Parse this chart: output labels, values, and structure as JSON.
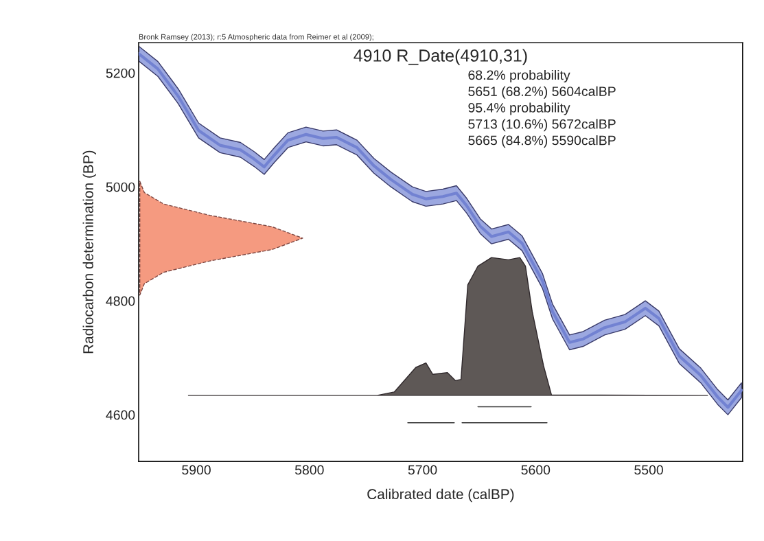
{
  "chart_data": {
    "type": "area",
    "title": "4910 R_Date(4910,31)",
    "subtitle": "Bronk Ramsey (2013); r:5 Atmospheric data from Reimer et al (2009);",
    "xlabel": "Calibrated date (calBP)",
    "ylabel": "Radiocarbon determination (BP)",
    "annotations": [
      "68.2% probability",
      "5651 (68.2%) 5604calBP",
      "95.4% probability",
      "5713 (10.6%) 5672calBP",
      "5665 (84.8%) 5590calBP"
    ],
    "xlim": [
      5951,
      5417
    ],
    "ylim": [
      4518,
      5253
    ],
    "xticks": [
      5900,
      5800,
      5700,
      5600,
      5500
    ],
    "yticks": [
      4600,
      4800,
      5000,
      5200
    ],
    "grid": false,
    "legend": false,
    "series": [
      {
        "type": "line",
        "color": "#7282d2",
        "x": [
          5951,
          5934,
          5916,
          5898,
          5879,
          5861,
          5849,
          5840,
          5831,
          5819,
          5803,
          5788,
          5776,
          5758,
          5743,
          5728,
          5709,
          5697,
          5682,
          5670,
          5661,
          5649,
          5639,
          5624,
          5612,
          5594,
          5585,
          5570,
          5558,
          5539,
          5521,
          5503,
          5491,
          5473,
          5454,
          5439,
          5430,
          5418
        ],
        "values": [
          5234,
          5207,
          5159,
          5099,
          5073,
          5065,
          5049,
          5035,
          5056,
          5082,
          5092,
          5085,
          5087,
          5069,
          5037,
          5013,
          4987,
          4979,
          4983,
          4989,
          4967,
          4931,
          4913,
          4921,
          4901,
          4835,
          4781,
          4727,
          4733,
          4753,
          4763,
          4787,
          4769,
          4703,
          4669,
          4631,
          4613,
          4643
        ],
        "upper": [
          5247,
          5220,
          5172,
          5112,
          5086,
          5078,
          5062,
          5048,
          5069,
          5095,
          5105,
          5098,
          5100,
          5082,
          5050,
          5026,
          5000,
          4992,
          4996,
          5002,
          4980,
          4944,
          4926,
          4934,
          4914,
          4848,
          4794,
          4740,
          4746,
          4766,
          4776,
          4800,
          4782,
          4716,
          4682,
          4644,
          4626,
          4656
        ],
        "lower": [
          5221,
          5194,
          5146,
          5086,
          5060,
          5052,
          5036,
          5022,
          5043,
          5069,
          5079,
          5072,
          5074,
          5056,
          5024,
          5000,
          4974,
          4966,
          4970,
          4976,
          4954,
          4918,
          4900,
          4908,
          4888,
          4822,
          4768,
          4714,
          4720,
          4740,
          4750,
          4774,
          4756,
          4690,
          4656,
          4618,
          4600,
          4630
        ]
      },
      {
        "color": "#f59a80",
        "line_style": "dashed",
        "x": [
          5950,
          5946,
          5929,
          5888,
          5833,
          5806,
          5833,
          5888,
          5929,
          5946,
          5950
        ],
        "values": [
          5010,
          4990,
          4970,
          4950,
          4930,
          4910,
          4890,
          4870,
          4850,
          4830,
          4810
        ]
      },
      {
        "color": "#5e5856",
        "x": [
          5907,
          5740,
          5725,
          5706,
          5697,
          5691,
          5678,
          5671,
          5666,
          5660,
          5651,
          5639,
          5624,
          5614,
          5609,
          5603,
          5593,
          5586,
          5448
        ],
        "values": [
          4634,
          4634,
          4640,
          4683,
          4691,
          4671,
          4674,
          4660,
          4662,
          4828,
          4861,
          4876,
          4872,
          4876,
          4861,
          4781,
          4686,
          4635,
          4634
        ]
      },
      {
        "type": "line",
        "color": "#333333",
        "x": [
          5651,
          5604
        ],
        "values": [
          4614,
          4614
        ]
      },
      {
        "type": "line",
        "color": "#333333",
        "x": [
          5713,
          5672
        ],
        "values": [
          4586,
          4586
        ]
      },
      {
        "type": "line",
        "color": "#333333",
        "x": [
          5665,
          5590
        ],
        "values": [
          4586,
          4586
        ]
      }
    ]
  }
}
